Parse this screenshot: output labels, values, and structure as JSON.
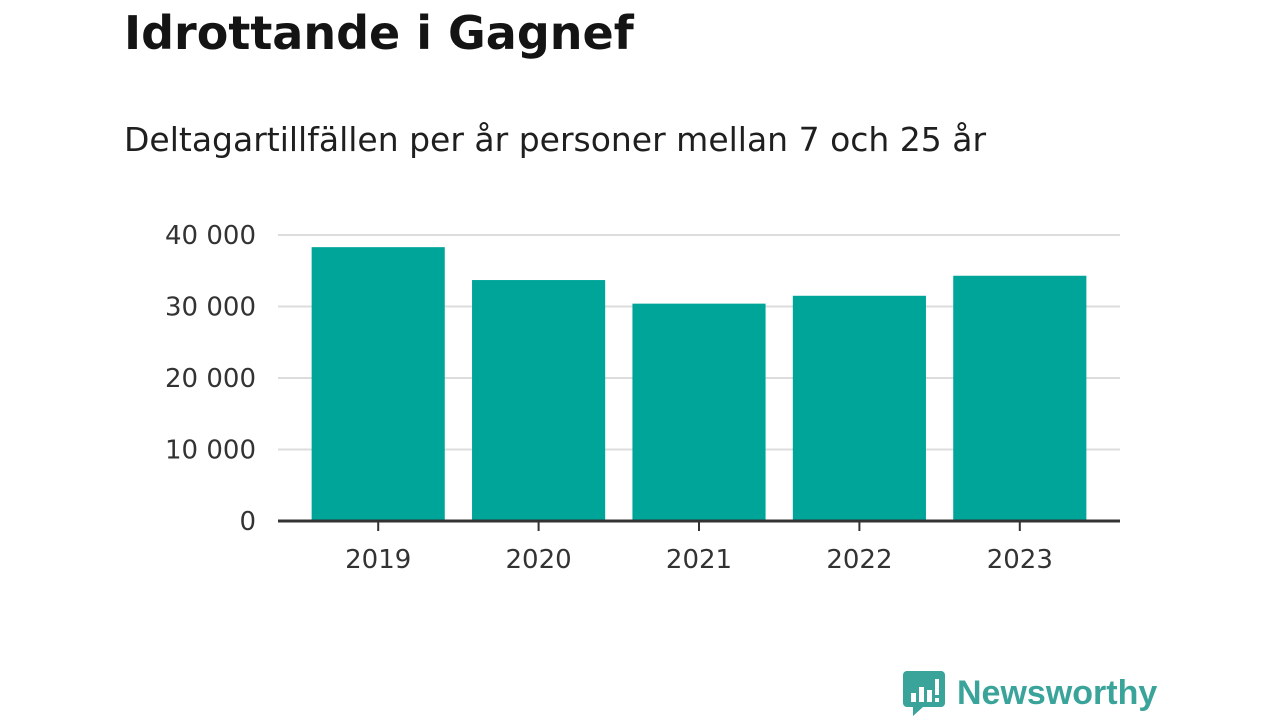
{
  "header": {
    "title": "Idrottande i Gagnef",
    "subtitle": "Deltagartillfällen per år personer mellan 7 och 25 år"
  },
  "chart_data": {
    "type": "bar",
    "categories": [
      "2019",
      "2020",
      "2021",
      "2022",
      "2023"
    ],
    "values": [
      38300,
      33700,
      30400,
      31500,
      34300
    ],
    "ylim": [
      0,
      40000
    ],
    "yticks": [
      0,
      10000,
      20000,
      30000,
      40000
    ],
    "ytick_labels": [
      "0",
      "10 000",
      "20 000",
      "30 000",
      "40 000"
    ],
    "grid": true,
    "bar_color": "#00a59a"
  },
  "brand": {
    "name": "Newsworthy",
    "icon": "newsworthy-logo-icon",
    "color": "#3aa39a"
  }
}
